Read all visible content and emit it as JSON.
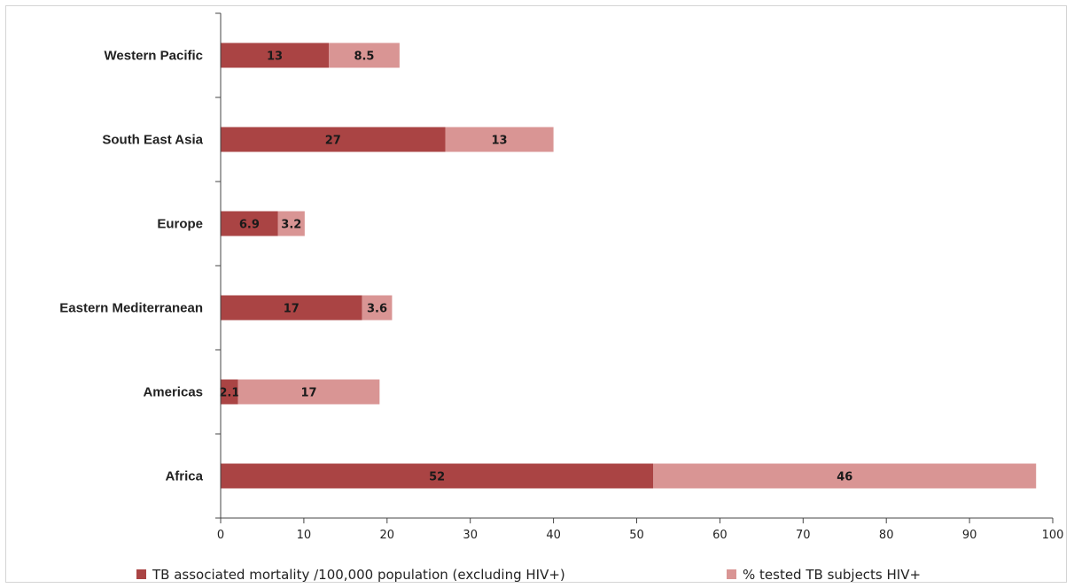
{
  "chart_data": {
    "type": "bar",
    "orientation": "horizontal",
    "stacked": true,
    "categories": [
      "Africa",
      "Americas",
      "Eastern Mediterranean",
      "Europe",
      "South East Asia",
      "Western Pacific"
    ],
    "series": [
      {
        "name": "TB associated mortality /100,000 population (excluding HIV+)",
        "values": [
          52,
          2.1,
          17,
          6.9,
          27,
          13
        ],
        "labels": [
          "52",
          "2.1",
          "17",
          "6.9",
          "27",
          "13"
        ],
        "color": "#aa4444"
      },
      {
        "name": "% tested TB subjects HIV+",
        "values": [
          46,
          17,
          3.6,
          3.2,
          13,
          8.5
        ],
        "labels": [
          "46",
          "17",
          "3.6",
          "3.2",
          "13",
          "8.5"
        ],
        "color": "#d99594"
      }
    ],
    "xticks": [
      "0",
      "10",
      "20",
      "30",
      "40",
      "50",
      "60",
      "70",
      "80",
      "90",
      "100"
    ],
    "xlim": [
      0,
      100
    ],
    "grid": false,
    "legend_position": "bottom"
  }
}
